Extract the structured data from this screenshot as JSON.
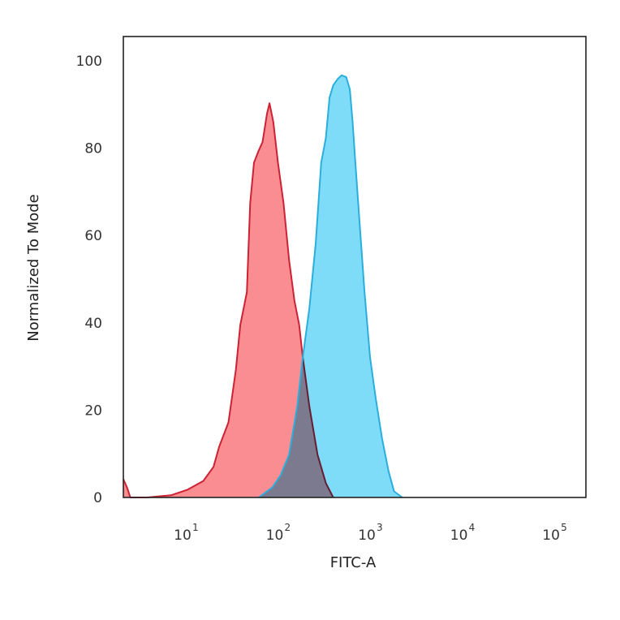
{
  "chart_data": {
    "type": "area",
    "title": "",
    "xlabel": "FITC-A",
    "ylabel": "Normalized To Mode",
    "xscale": "log",
    "xlim": [
      2.1,
      220000
    ],
    "ylim": [
      0,
      100
    ],
    "grid": false,
    "x_ticks": [
      {
        "base": "10",
        "exp": "1",
        "value": 10
      },
      {
        "base": "10",
        "exp": "2",
        "value": 100
      },
      {
        "base": "10",
        "exp": "3",
        "value": 1000
      },
      {
        "base": "10",
        "exp": "4",
        "value": 10000
      },
      {
        "base": "10",
        "exp": "5",
        "value": 100000
      }
    ],
    "y_ticks": [
      "0",
      "20",
      "40",
      "60",
      "80",
      "100"
    ],
    "series": [
      {
        "color_fill": "#f98d92",
        "color_line": "#cc2233",
        "x": [
          2.1,
          2.3,
          2.5,
          3.8,
          6.9,
          10.5,
          15.5,
          20,
          23,
          29,
          35,
          39,
          46,
          50,
          55,
          62,
          68,
          76,
          81,
          89,
          100,
          115,
          132,
          151,
          170,
          186,
          219,
          269,
          331,
          398
        ],
        "y": [
          4.2,
          2.3,
          0,
          0,
          0.5,
          1.8,
          3.8,
          7,
          11.6,
          17.2,
          29.3,
          39.5,
          47,
          67.4,
          76.7,
          79.5,
          81.4,
          87.9,
          90.3,
          86,
          76.7,
          67.4,
          54.4,
          45.1,
          39.5,
          32.1,
          20.9,
          9.8,
          3.3,
          0
        ]
      },
      {
        "color_fill": "#7fdcf8",
        "color_line": "#2aaedc",
        "x": [
          62,
          87,
          107,
          132,
          162,
          186,
          219,
          257,
          295,
          331,
          363,
          398,
          447,
          490,
          550,
          603,
          646,
          692,
          776,
          871,
          1000,
          1150,
          1350,
          1585,
          1820,
          2240
        ],
        "y": [
          0,
          2.3,
          5.1,
          9.8,
          20.9,
          32.1,
          43.3,
          58.1,
          76.7,
          82.3,
          91.6,
          94.4,
          95.9,
          96.7,
          96.3,
          93.5,
          86,
          76.7,
          61.9,
          47,
          32.1,
          22.8,
          13.5,
          6,
          1.4,
          0
        ]
      }
    ]
  }
}
